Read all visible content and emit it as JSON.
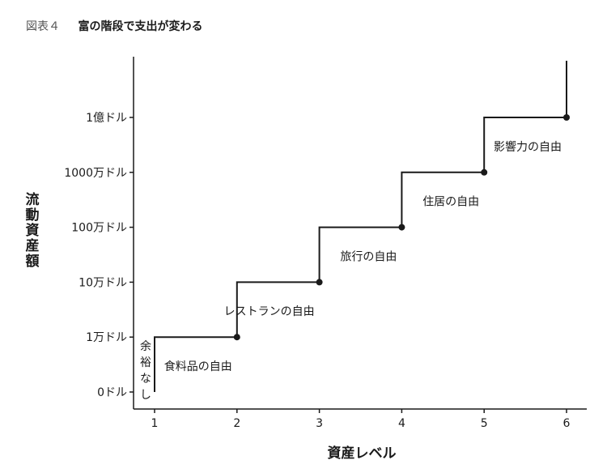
{
  "figure_header": {
    "number": "図表４",
    "title": "富の階段で支出が変わる"
  },
  "chart_data": {
    "type": "line",
    "xlabel": "資産レベル",
    "ylabel": "流動資産額",
    "x_ticks": [
      "1",
      "2",
      "3",
      "4",
      "5",
      "6"
    ],
    "y_ticks": [
      "0ドル",
      "1万ドル",
      "10万ドル",
      "100万ドル",
      "1000万ドル",
      "1億ドル"
    ],
    "xlim": [
      0.75,
      6.25
    ],
    "grid": false,
    "series": [
      {
        "x": [
          1,
          2,
          3,
          4,
          5,
          6
        ],
        "y": [
          "0ドル",
          "1万ドル",
          "10万ドル",
          "100万ドル",
          "1000万ドル",
          "1億ドル"
        ],
        "step_labels": [
          "余裕なし",
          "食料品の自由",
          "レストランの自由",
          "旅行の自由",
          "住居の自由",
          "影響力の自由"
        ],
        "y_index": [
          0,
          1,
          2,
          3,
          4,
          5
        ]
      }
    ]
  }
}
